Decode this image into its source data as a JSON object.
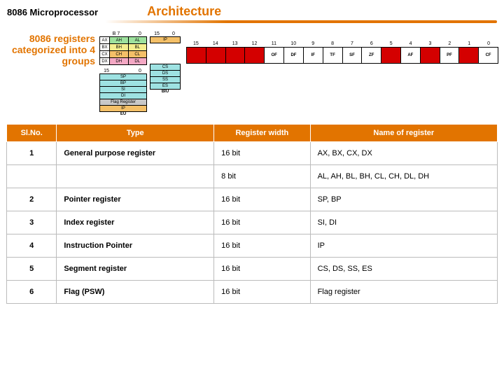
{
  "header": {
    "left": "8086 Microprocessor",
    "title": "Architecture"
  },
  "caption": "8086 registers categorized into 4 groups",
  "diagram": {
    "bits": {
      "b7": "B 7",
      "b0": "0",
      "b15": "15"
    },
    "gp": [
      {
        "lbl": "AX",
        "hi": "AH",
        "lo": "AL",
        "cls": "g-grn"
      },
      {
        "lbl": "BX",
        "hi": "BH",
        "lo": "BL",
        "cls": "g-yel"
      },
      {
        "lbl": "CX",
        "hi": "CH",
        "lo": "CL",
        "cls": "g-ora"
      },
      {
        "lbl": "DX",
        "hi": "DH",
        "lo": "DL",
        "cls": "g-pnk"
      }
    ],
    "ptr": [
      {
        "c": "SP",
        "cls": "g-cyan"
      },
      {
        "c": "BP",
        "cls": "g-cyan"
      },
      {
        "c": "SI",
        "cls": "g-cyan"
      },
      {
        "c": "DI",
        "cls": "g-cyan"
      },
      {
        "c": "Flag Register",
        "cls": "g-gray"
      },
      {
        "c": "IP",
        "cls": "g-ora"
      }
    ],
    "seg": [
      {
        "c": "CS",
        "cls": "g-cyan"
      },
      {
        "c": "DS",
        "cls": "g-cyan"
      },
      {
        "c": "SS",
        "cls": "g-cyan"
      },
      {
        "c": "ES",
        "cls": "g-cyan"
      }
    ],
    "right_top": {
      "c": "IP",
      "cls": "g-ora"
    },
    "eu": "EU",
    "biu": "BIU"
  },
  "flags": {
    "nums": [
      "15",
      "14",
      "13",
      "12",
      "11",
      "10",
      "9",
      "8",
      "7",
      "6",
      "5",
      "4",
      "3",
      "2",
      "1",
      "0"
    ],
    "cells": [
      {
        "t": "",
        "color": "#d40000"
      },
      {
        "t": "",
        "color": "#d40000"
      },
      {
        "t": "",
        "color": "#d40000"
      },
      {
        "t": "",
        "color": "#d40000"
      },
      {
        "t": "OF",
        "color": "#ffffff",
        "fg": "#000"
      },
      {
        "t": "DF",
        "color": "#ffffff",
        "fg": "#000"
      },
      {
        "t": "IF",
        "color": "#ffffff",
        "fg": "#000"
      },
      {
        "t": "TF",
        "color": "#ffffff",
        "fg": "#000"
      },
      {
        "t": "SF",
        "color": "#ffffff",
        "fg": "#000"
      },
      {
        "t": "ZF",
        "color": "#ffffff",
        "fg": "#000"
      },
      {
        "t": "",
        "color": "#d40000"
      },
      {
        "t": "AF",
        "color": "#ffffff",
        "fg": "#000"
      },
      {
        "t": "",
        "color": "#d40000"
      },
      {
        "t": "PF",
        "color": "#ffffff",
        "fg": "#000"
      },
      {
        "t": "",
        "color": "#d40000"
      },
      {
        "t": "CF",
        "color": "#ffffff",
        "fg": "#000"
      }
    ]
  },
  "table": {
    "headers": [
      "Sl.No.",
      "Type",
      "Register width",
      "Name of register"
    ],
    "rows": [
      {
        "sn": "1",
        "type": "General purpose register",
        "width": "16 bit",
        "name": "AX, BX, CX, DX"
      },
      {
        "sn": "",
        "type": "",
        "width": "8 bit",
        "name": "AL, AH, BL, BH, CL, CH, DL, DH"
      },
      {
        "sn": "2",
        "type": "Pointer register",
        "width": "16 bit",
        "name": "SP, BP"
      },
      {
        "sn": "3",
        "type": "Index register",
        "width": "16 bit",
        "name": "SI, DI"
      },
      {
        "sn": "4",
        "type": "Instruction Pointer",
        "width": "16 bit",
        "name": "IP"
      },
      {
        "sn": "5",
        "type": "Segment register",
        "width": "16 bit",
        "name": "CS, DS, SS, ES"
      },
      {
        "sn": "6",
        "type": "Flag (PSW)",
        "width": "16 bit",
        "name": "Flag register"
      }
    ]
  }
}
